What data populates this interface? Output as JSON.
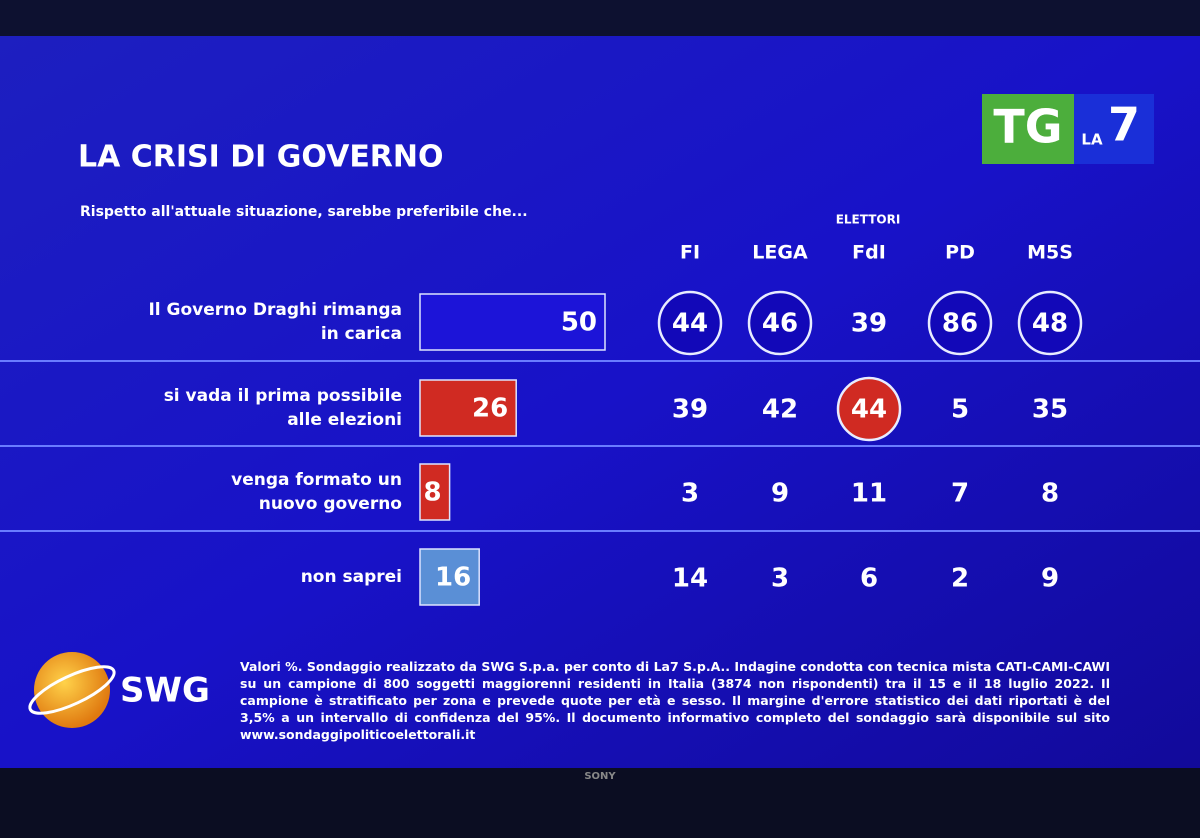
{
  "header": {
    "title": "LA CRISI DI GOVERNO",
    "subtitle": "Rispetto all'attuale situazione, sarebbe preferibile che...",
    "logo": {
      "tg": "TG",
      "la": "LA",
      "seven": "7"
    }
  },
  "chart_data": {
    "type": "bar",
    "categories": [
      [
        "Il Governo Draghi rimanga",
        "in carica"
      ],
      [
        "si vada il prima possibile",
        "alle elezioni"
      ],
      [
        "venga formato un",
        "nuovo governo"
      ],
      [
        "non saprei"
      ]
    ],
    "values": [
      50,
      26,
      8,
      16
    ],
    "colors": [
      "#1c14d8",
      "#d02a22",
      "#d02a22",
      "#5a8fd6"
    ]
  },
  "breakdown": {
    "group_label": "ELETTORI",
    "columns": [
      "FI",
      "LEGA",
      "FdI",
      "PD",
      "M5S"
    ],
    "rows": [
      [
        44,
        46,
        39,
        86,
        48
      ],
      [
        39,
        42,
        44,
        5,
        35
      ],
      [
        3,
        9,
        11,
        7,
        8
      ],
      [
        14,
        3,
        6,
        2,
        9
      ]
    ],
    "highlight_column_max": true
  },
  "footer": {
    "brand": "SWG",
    "note": "Valori %. Sondaggio realizzato da SWG S.p.a. per conto di La7 S.p.A.. Indagine condotta con tecnica mista CATI-CAMI-CAWI su un campione di 800 soggetti maggiorenni residenti in Italia (3874 non rispondenti) tra il 15 e il 18 luglio 2022. Il campione è stratificato per zona e prevede quote per età e sesso. Il margine d'errore statistico dei dati riportati è del 3,5% a un intervallo di confidenza del 95%. Il documento informativo completo del sondaggio sarà disponibile sul sito www.sondaggipoliticoelettorali.it",
    "tv_brand": "SONY"
  }
}
